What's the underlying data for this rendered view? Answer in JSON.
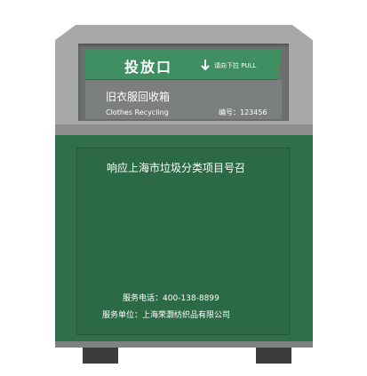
{
  "slot": {
    "title": "投放口",
    "pull_text": "请向下拉  PULL",
    "arrow_icon": "down-arrow-icon"
  },
  "label": {
    "name_cn": "旧衣服回收箱",
    "name_en": "Clothes Recycling",
    "serial": "编号：123456"
  },
  "body": {
    "slogan": "响应上海市垃圾分类项目号召",
    "phone": "服务电话：400-138-8899",
    "unit": "服务单位：上海荣灏纺织品有限公司"
  },
  "colors": {
    "green": "#2e6f48",
    "banner_green": "#3f8f62",
    "gray": "#a7a9a8",
    "dark_gray": "#6b6f6e",
    "legs": "#3b3d3c"
  }
}
